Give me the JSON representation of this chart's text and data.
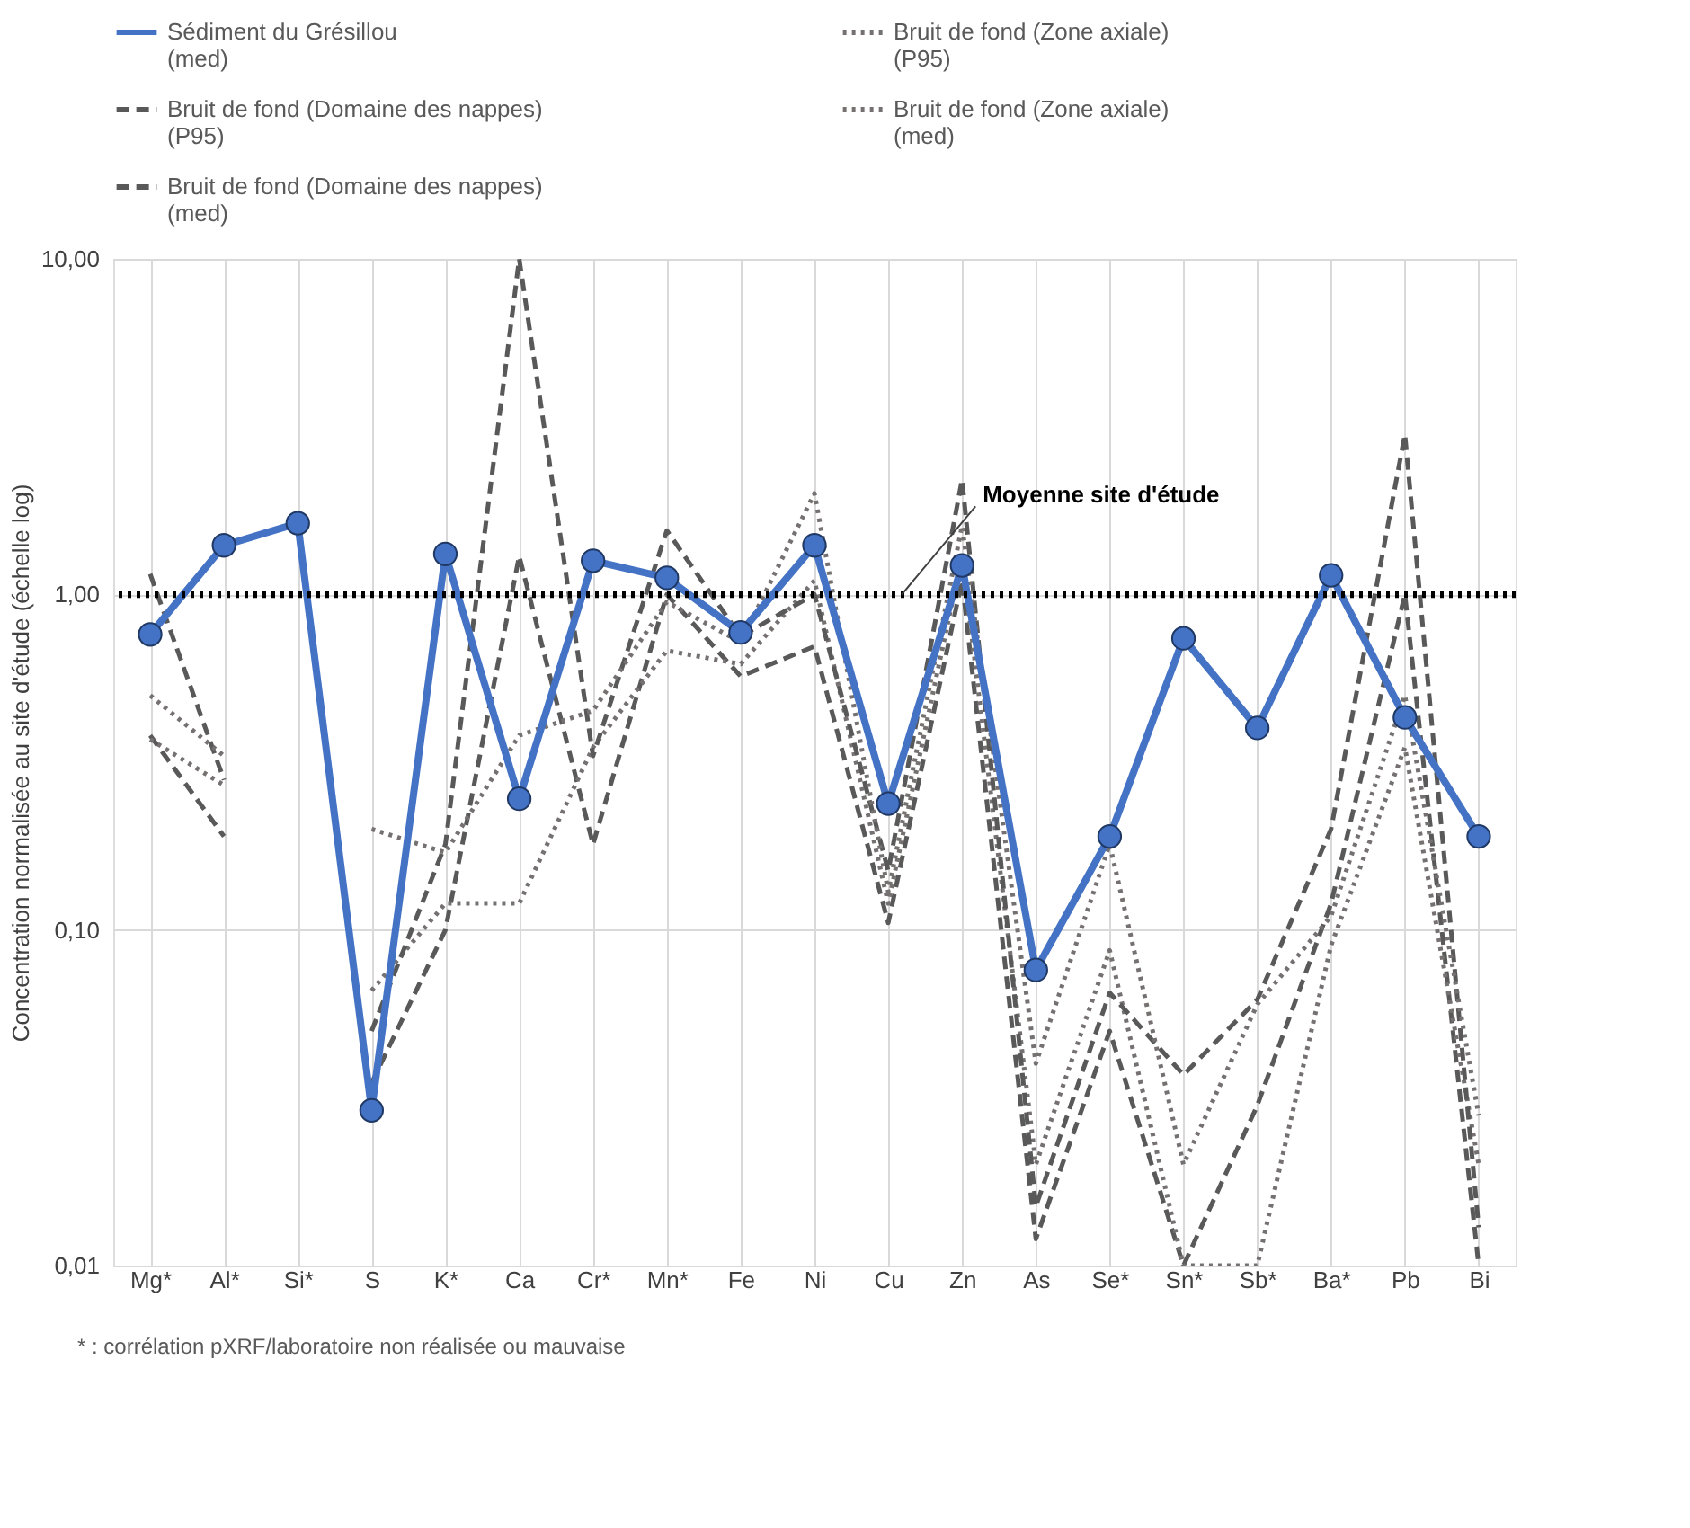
{
  "chart_data": {
    "type": "line",
    "ylabel": "Concentration normalisée au site d'étude (échelle log)",
    "categories": [
      "Mg*",
      "Al*",
      "Si*",
      "S",
      "K*",
      "Ca",
      "Cr*",
      "Mn*",
      "Fe",
      "Ni",
      "Cu",
      "Zn",
      "As",
      "Se*",
      "Sn*",
      "Sb*",
      "Ba*",
      "Pb",
      "Bi"
    ],
    "series": [
      {
        "name": "Sédiment du Grésillou\n(med)",
        "color": "#4472c4",
        "line_style": "solid",
        "marker": "circle",
        "values": [
          0.76,
          1.4,
          1.63,
          0.029,
          1.32,
          0.246,
          1.26,
          1.12,
          0.77,
          1.4,
          0.238,
          1.22,
          0.076,
          0.19,
          0.74,
          0.4,
          1.14,
          0.43,
          0.19
        ]
      },
      {
        "name": "Bruit de fond (Zone axiale)\n(P95)",
        "color": "#767171",
        "line_style": "dotted",
        "marker": "none",
        "values": [
          0.5,
          0.33,
          null,
          0.2,
          0.17,
          0.38,
          0.45,
          0.95,
          0.72,
          2.0,
          0.13,
          1.6,
          0.04,
          0.18,
          0.02,
          0.06,
          0.11,
          0.5,
          0.028
        ]
      },
      {
        "name": "Bruit de fond (Domaine des nappes)\n(P95)",
        "color": "#595959",
        "line_style": "dashed",
        "marker": "none",
        "values": [
          1.15,
          0.28,
          null,
          0.05,
          0.18,
          10.0,
          0.33,
          1.55,
          0.75,
          1.0,
          0.15,
          2.2,
          0.015,
          0.065,
          0.037,
          0.062,
          0.2,
          3.0,
          0.013
        ]
      },
      {
        "name": "Bruit de fond (Zone axiale)\n(med)",
        "color": "#767171",
        "line_style": "dotted",
        "marker": "none",
        "values": [
          0.37,
          0.27,
          null,
          0.066,
          0.12,
          0.12,
          0.35,
          0.68,
          0.62,
          1.1,
          0.12,
          1.3,
          0.02,
          0.087,
          0.01,
          0.01,
          0.09,
          0.35,
          0.02
        ]
      },
      {
        "name": "Bruit de fond (Domaine des nappes)\n(med)",
        "color": "#595959",
        "line_style": "dashed",
        "marker": "none",
        "values": [
          0.38,
          0.19,
          null,
          0.035,
          0.1,
          1.3,
          0.18,
          1.0,
          0.57,
          0.7,
          0.105,
          1.1,
          0.012,
          0.05,
          0.01,
          0.03,
          0.12,
          1.0,
          0.01
        ]
      }
    ],
    "log": "y",
    "ylim": [
      0.01,
      10
    ],
    "yticks": [
      {
        "value": 0.01,
        "label": "0,01"
      },
      {
        "value": 0.1,
        "label": "0,10"
      },
      {
        "value": 1,
        "label": "1,00"
      },
      {
        "value": 10,
        "label": "10,00"
      }
    ],
    "grid": true,
    "legend": "top",
    "ref_lines": [
      {
        "axis": "y",
        "value": 1,
        "label": "Moyenne site d'étude",
        "color": "#000000",
        "line_style": "dotted"
      }
    ],
    "annotations": [
      "* : corrélation pXRF/laboratoire non réalisée ou mauvaise"
    ]
  }
}
